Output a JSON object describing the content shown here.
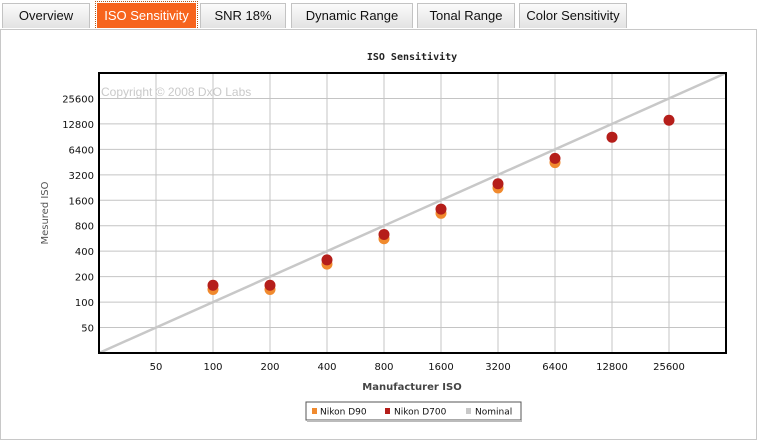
{
  "tabs": [
    {
      "label": "Overview",
      "active": false
    },
    {
      "label": "ISO Sensitivity",
      "active": true
    },
    {
      "label": "SNR 18%",
      "active": false
    },
    {
      "label": "Dynamic Range",
      "active": false
    },
    {
      "label": "Tonal Range",
      "active": false
    },
    {
      "label": "Color Sensitivity",
      "active": false
    }
  ],
  "watermark": "Copyright © 2008 DxO Labs",
  "chart_data": {
    "type": "scatter",
    "title": "ISO Sensitivity",
    "xlabel": "Manufacturer ISO",
    "ylabel": "Mesured ISO",
    "x_scale": "log2",
    "y_scale": "log2",
    "xlim": [
      25,
      51200
    ],
    "ylim": [
      25,
      51200
    ],
    "x_ticks": [
      50,
      100,
      200,
      400,
      800,
      1600,
      3200,
      6400,
      12800,
      25600
    ],
    "y_ticks": [
      50,
      100,
      200,
      400,
      800,
      1600,
      3200,
      6400,
      12800,
      25600
    ],
    "grid": true,
    "legend_position": "bottom-center",
    "series": [
      {
        "name": "Nikon D90",
        "color": "#f08a2e",
        "points": [
          [
            100,
            141
          ],
          [
            200,
            141
          ],
          [
            400,
            281
          ],
          [
            800,
            562
          ],
          [
            1600,
            1122
          ],
          [
            3200,
            2239
          ],
          [
            6400,
            4467
          ]
        ]
      },
      {
        "name": "Nikon D700",
        "color": "#b51e1a",
        "points": [
          [
            100,
            158
          ],
          [
            200,
            158
          ],
          [
            400,
            316
          ],
          [
            800,
            631
          ],
          [
            1600,
            1259
          ],
          [
            3200,
            2512
          ],
          [
            6400,
            5012
          ],
          [
            12800,
            8913
          ],
          [
            25600,
            14125
          ]
        ]
      },
      {
        "name": "Nominal",
        "color": "#c8c8c8",
        "type": "line",
        "points": [
          [
            25,
            25
          ],
          [
            51200,
            51200
          ]
        ]
      }
    ]
  }
}
